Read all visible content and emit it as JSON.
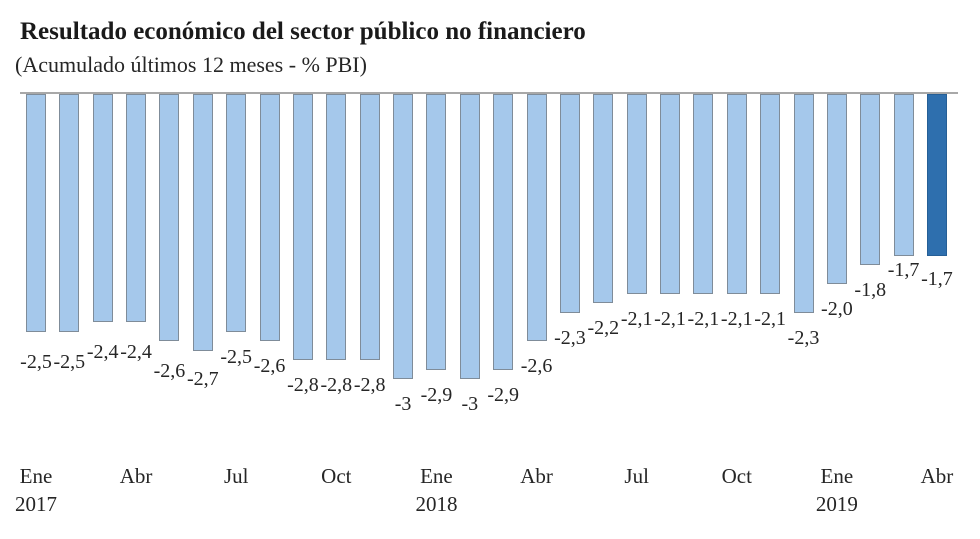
{
  "title": "Resultado económico del sector público no financiero",
  "subtitle": "(Acumulado últimos 12 meses - % PBI)",
  "chart_data": {
    "type": "bar",
    "title": "Resultado económico del sector público no financiero",
    "subtitle": "(Acumulado últimos 12 meses - % PBI)",
    "xlabel": "",
    "ylabel": "% PBI",
    "ylim": [
      -3.2,
      0
    ],
    "grid": false,
    "legend": "none",
    "decimal_separator": ",",
    "categories": [
      "Ene 2017",
      "Feb 2017",
      "Mar 2017",
      "Abr 2017",
      "May 2017",
      "Jun 2017",
      "Jul 2017",
      "Ago 2017",
      "Sep 2017",
      "Oct 2017",
      "Nov 2017",
      "Dic 2017",
      "Ene 2018",
      "Feb 2018",
      "Mar 2018",
      "Abr 2018",
      "May 2018",
      "Jun 2018",
      "Jul 2018",
      "Ago 2018",
      "Sep 2018",
      "Oct 2018",
      "Nov 2018",
      "Dic 2018",
      "Ene 2019",
      "Feb 2019",
      "Mar 2019",
      "Abr 2019"
    ],
    "values": [
      -2.5,
      -2.5,
      -2.4,
      -2.4,
      -2.6,
      -2.7,
      -2.5,
      -2.6,
      -2.8,
      -2.8,
      -2.8,
      -3,
      -2.9,
      -3,
      -2.9,
      -2.6,
      -2.3,
      -2.2,
      -2.1,
      -2.1,
      -2.1,
      -2.1,
      -2.1,
      -2.3,
      -2.0,
      -1.8,
      -1.7,
      -1.7
    ],
    "data_labels": [
      "-2,5",
      "-2,5",
      "-2,4",
      "-2,4",
      "-2,6",
      "-2,7",
      "-2,5",
      "-2,6",
      "-2,8",
      "-2,8",
      "-2,8",
      "-3",
      "-2,9",
      "-3",
      "-2,9",
      "-2,6",
      "-2,3",
      "-2,2",
      "-2,1",
      "-2,1",
      "-2,1",
      "-2,1",
      "-2,1",
      "-2,3",
      "-2,0",
      "-1,8",
      "-1,7",
      "-1,7"
    ],
    "highlight_index": 27,
    "axis_ticks": [
      {
        "index": 0,
        "line1": "Ene",
        "line2": "2017"
      },
      {
        "index": 3,
        "line1": "Abr",
        "line2": ""
      },
      {
        "index": 6,
        "line1": "Jul",
        "line2": ""
      },
      {
        "index": 9,
        "line1": "Oct",
        "line2": ""
      },
      {
        "index": 12,
        "line1": "Ene",
        "line2": "2018"
      },
      {
        "index": 15,
        "line1": "Abr",
        "line2": ""
      },
      {
        "index": 18,
        "line1": "Jul",
        "line2": ""
      },
      {
        "index": 21,
        "line1": "Oct",
        "line2": ""
      },
      {
        "index": 24,
        "line1": "Ene",
        "line2": "2019"
      },
      {
        "index": 27,
        "line1": "Abr",
        "line2": ""
      }
    ],
    "colors": {
      "bar_fill": "#A5C8EB",
      "bar_border": "#7F8C99",
      "highlight_fill": "#2E6FAE",
      "highlight_border": "#265F96",
      "baseline": "#A8A8A8",
      "label_text": "#262626",
      "title_text": "#1A1A1A"
    }
  }
}
